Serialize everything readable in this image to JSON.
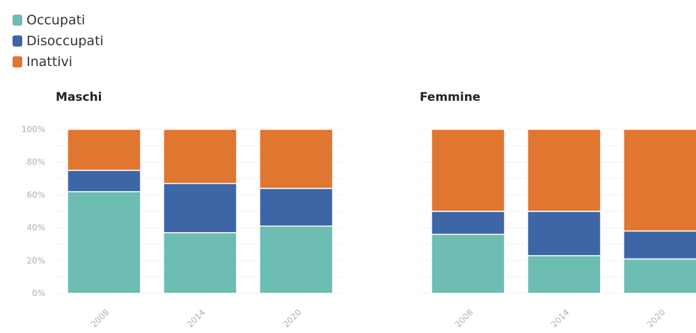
{
  "legend": [
    {
      "label": "Occupati",
      "color": "#6dbdb3"
    },
    {
      "label": "Disoccupati",
      "color": "#3e66a6"
    },
    {
      "label": "Inattivi",
      "color": "#e0762f"
    }
  ],
  "chart_data": [
    {
      "type": "bar",
      "stacked": true,
      "title": "Maschi",
      "categories": [
        "2008",
        "2014",
        "2020"
      ],
      "series": [
        {
          "name": "Occupati",
          "values": [
            62,
            37,
            41
          ]
        },
        {
          "name": "Disoccupati",
          "values": [
            13,
            30,
            23
          ]
        },
        {
          "name": "Inattivi",
          "values": [
            25,
            33,
            36
          ]
        }
      ],
      "yticks": [
        "0%",
        "20%",
        "40%",
        "60%",
        "80%",
        "100%"
      ],
      "ylim": [
        0,
        100
      ],
      "grid": true
    },
    {
      "type": "bar",
      "stacked": true,
      "title": "Femmine",
      "categories": [
        "2008",
        "2014",
        "2020"
      ],
      "series": [
        {
          "name": "Occupati",
          "values": [
            36,
            23,
            21
          ]
        },
        {
          "name": "Disoccupati",
          "values": [
            14,
            27,
            17
          ]
        },
        {
          "name": "Inattivi",
          "values": [
            50,
            50,
            62
          ]
        }
      ],
      "ylim": [
        0,
        100
      ],
      "grid": true
    }
  ]
}
